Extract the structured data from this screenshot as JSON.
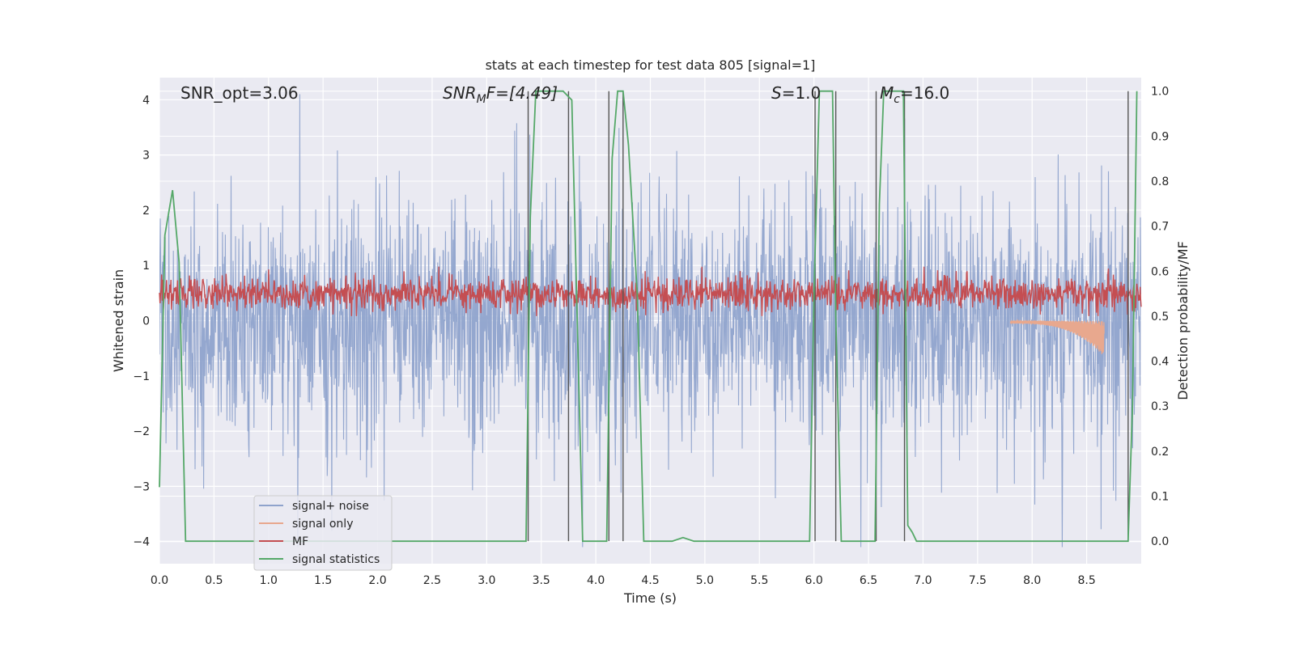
{
  "chart_data": {
    "type": "line",
    "title": "stats at each timestep for test data 805 [signal=1]",
    "xlabel": "Time (s)",
    "ylabel": "Whitened strain",
    "ylabel_right": "Detection probability/MF",
    "xlim": [
      0,
      9
    ],
    "ylim": [
      -4.4,
      4.4
    ],
    "ylim_right": [
      -0.05,
      1.03
    ],
    "x_ticks": [
      "0.0",
      "0.5",
      "1.0",
      "1.5",
      "2.0",
      "2.5",
      "3.0",
      "3.5",
      "4.0",
      "4.5",
      "5.0",
      "5.5",
      "6.0",
      "6.5",
      "7.0",
      "7.5",
      "8.0",
      "8.5"
    ],
    "y_ticks_left": [
      "4",
      "3",
      "2",
      "1",
      "0",
      "−1",
      "−2",
      "−3",
      "−4"
    ],
    "y_ticks_right": [
      "1.0",
      "0.9",
      "0.8",
      "0.7",
      "0.6",
      "0.5",
      "0.4",
      "0.3",
      "0.2",
      "0.1",
      "0.0"
    ],
    "grid": true,
    "annotations": {
      "snr_opt": "SNR_opt=3.06",
      "snr_mf_main": "SNR",
      "snr_mf_sub": "M",
      "snr_mf_rest": "F=[4.49]",
      "s_main": "S",
      "s_rest": "=1.0",
      "mc_main": "M",
      "mc_sub": "c",
      "mc_rest": "=16.0"
    },
    "legend_position": "lower-left",
    "series": [
      {
        "name": "signal+ noise",
        "color": "#8fa3cc",
        "description_envelope_amplitude": 2.6,
        "x_range": [
          0,
          9
        ],
        "peak_values": [
          3.15,
          4.0,
          3.7,
          -3.6,
          3.1,
          -3.6,
          3.8,
          -3.8,
          3.7,
          -3.8,
          3.2
        ]
      },
      {
        "name": "signal only",
        "color": "#e8a88e",
        "x": [
          7.8,
          8.0,
          8.2,
          8.4,
          8.6,
          8.65
        ],
        "y": [
          -0.05,
          -0.1,
          -0.15,
          -0.25,
          -0.45,
          -0.65
        ]
      },
      {
        "name": "MF",
        "color": "#c44e52",
        "baseline": 0.55,
        "x_range": [
          0,
          9
        ]
      },
      {
        "name": "signal statistics",
        "color": "#55a868",
        "x": [
          0.0,
          0.05,
          0.12,
          0.18,
          0.24,
          0.3,
          1.0,
          2.0,
          3.0,
          3.36,
          3.4,
          3.45,
          3.7,
          3.78,
          3.88,
          4.1,
          4.15,
          4.2,
          4.25,
          4.3,
          4.38,
          4.44,
          4.7,
          4.8,
          4.9,
          5.0,
          5.5,
          5.96,
          6.0,
          6.05,
          6.17,
          6.2,
          6.25,
          6.3,
          6.56,
          6.6,
          6.64,
          6.82,
          6.86,
          6.9,
          6.94,
          7.5,
          8.0,
          8.5,
          8.88,
          8.92,
          8.96
        ],
        "y": [
          0.12,
          0.68,
          0.78,
          0.62,
          0.0,
          0.0,
          0.0,
          0.0,
          0.0,
          0.0,
          0.72,
          1.0,
          1.0,
          0.98,
          0.0,
          0.0,
          0.85,
          1.0,
          1.0,
          0.88,
          0.55,
          0.0,
          0.0,
          0.008,
          0.0,
          0.0,
          0.0,
          0.0,
          0.55,
          1.0,
          1.0,
          0.5,
          0.0,
          0.0,
          0.0,
          0.75,
          1.0,
          1.0,
          0.035,
          0.02,
          0.0,
          0.0,
          0.0,
          0.0,
          0.0,
          0.3,
          1.0
        ]
      }
    ],
    "vertical_markers": [
      {
        "x": 3.38,
        "y_top_right": 1.0,
        "y_bottom_right": 0.0
      },
      {
        "x": 3.75,
        "y_top_right": 1.0,
        "y_bottom_right": 0.0
      },
      {
        "x": 4.12,
        "y_top_right": 1.0,
        "y_bottom_right": 0.0
      },
      {
        "x": 4.25,
        "y_top_right": 1.0,
        "y_bottom_right": 0.0
      },
      {
        "x": 6.01,
        "y_top_right": 1.0,
        "y_bottom_right": 0.0
      },
      {
        "x": 6.2,
        "y_top_right": 1.0,
        "y_bottom_right": 0.0
      },
      {
        "x": 6.57,
        "y_top_right": 1.0,
        "y_bottom_right": 0.0
      },
      {
        "x": 6.83,
        "y_top_right": 1.0,
        "y_bottom_right": 0.0
      },
      {
        "x": 8.88,
        "y_top_right": 1.0,
        "y_bottom_right": 0.0
      }
    ],
    "colors": {
      "plot_background": "#eaeaf2",
      "grid": "#ffffff",
      "marker": "#555555"
    }
  }
}
